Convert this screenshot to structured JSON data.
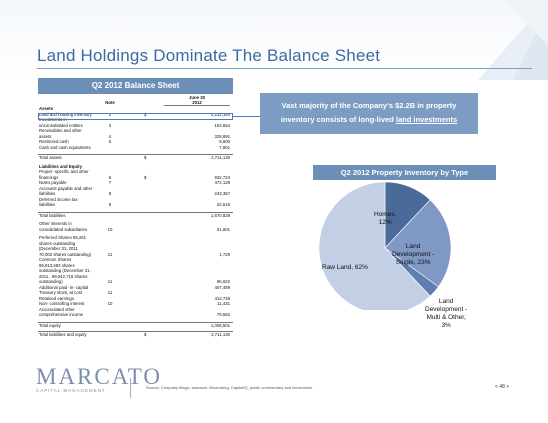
{
  "slide": {
    "title": "Land Holdings Dominate The Balance Sheet"
  },
  "balance_sheet": {
    "header": "Q2 2012 Balance Sheet",
    "col_note": "Note",
    "col_date": "June 30",
    "col_year": "2012",
    "rows": [
      {
        "label": "Assets",
        "note": "",
        "cur": "",
        "value": "",
        "bold": true
      },
      {
        "label": "Land and housing inventory",
        "note": "2",
        "cur": "$",
        "value": "2,212,184"
      },
      {
        "label": "Investments in",
        "note": "",
        "cur": "",
        "value": ""
      },
      {
        "label": "unconsolidated entities",
        "note": "3",
        "cur": "",
        "value": "153,654"
      },
      {
        "label": "Receivables and other",
        "note": "",
        "cur": "",
        "value": ""
      },
      {
        "label": "assets",
        "note": "4",
        "cur": "",
        "value": "328,891"
      },
      {
        "label": "Restricted cash",
        "note": "5",
        "cur": "",
        "value": "8,600"
      },
      {
        "label": "Cash and cash equivalents",
        "note": "",
        "cur": "",
        "value": "7,801"
      },
      {
        "label": "Total assets",
        "note": "",
        "cur": "$",
        "value": "2,711,130",
        "total": true
      },
      {
        "label": "Liabilities and Equity",
        "note": "",
        "cur": "",
        "value": "",
        "bold": true
      },
      {
        "label": "Project -specific and other",
        "note": "",
        "cur": "",
        "value": ""
      },
      {
        "label": "financings",
        "note": "6",
        "cur": "$",
        "value": "932,724"
      },
      {
        "label": "Notes payable",
        "note": "7",
        "cur": "",
        "value": "472,128"
      },
      {
        "label": "Accounts payable and other",
        "note": "",
        "cur": "",
        "value": ""
      },
      {
        "label": "liabilities",
        "note": "8",
        "cur": "",
        "value": "243,357"
      },
      {
        "label": "Deferred income tax",
        "note": "",
        "cur": "",
        "value": ""
      },
      {
        "label": "liabilities",
        "note": "9",
        "cur": "",
        "value": "22,619"
      },
      {
        "label": "Total liabilities",
        "note": "",
        "cur": "",
        "value": "1,670,828",
        "total": true
      },
      {
        "label": "Other interests in",
        "note": "",
        "cur": "",
        "value": ""
      },
      {
        "label": "consolidated subsidiaries",
        "note": "10",
        "cur": "",
        "value": "31,801"
      },
      {
        "label": "Preferred Shares  69,261",
        "note": "",
        "cur": "",
        "value": ""
      },
      {
        "label": "shares outstanding",
        "note": "",
        "cur": "",
        "value": ""
      },
      {
        "label": "(December 31, 2011",
        "note": "",
        "cur": "",
        "value": ""
      },
      {
        "label": "70,002 shares outstanding)",
        "note": "11",
        "cur": "",
        "value": "1,729"
      },
      {
        "label": "Common Shares",
        "note": "",
        "cur": "",
        "value": ""
      },
      {
        "label": "99,813,683 shares",
        "note": "",
        "cur": "",
        "value": ""
      },
      {
        "label": "outstanding (December 31,",
        "note": "",
        "cur": "",
        "value": ""
      },
      {
        "label": "2011 , 99,042,718 shares",
        "note": "",
        "cur": "",
        "value": ""
      },
      {
        "label": "outstanding)",
        "note": "11",
        "cur": "",
        "value": "96,622"
      },
      {
        "label": "Additional paid -in- capital",
        "note": "",
        "cur": "",
        "value": "407,469"
      },
      {
        "label": "Treasury stock, at cost",
        "note": "11",
        "cur": "",
        "value": ""
      },
      {
        "label": "Retained earnings",
        "note": "",
        "cur": "",
        "value": "412,748"
      },
      {
        "label": "Non- controlling interest",
        "note": "10",
        "cur": "",
        "value": "11,431"
      },
      {
        "label": "Accumulated other",
        "note": "",
        "cur": "",
        "value": ""
      },
      {
        "label": "comprehensive income",
        "note": "",
        "cur": "",
        "value": "79,562"
      },
      {
        "label": "Total equity",
        "note": "",
        "cur": "",
        "value": "1,008,501",
        "total": true
      },
      {
        "label": "Total liabilities and equity",
        "note": "",
        "cur": "$",
        "value": "2,711,130",
        "total": true
      }
    ]
  },
  "callout": {
    "line1": "Vast majority of the Company's $2.2B in property",
    "line2_prefix": "inventory consists of long-lived ",
    "line2_link": "land investments"
  },
  "chart_data": {
    "type": "pie",
    "title": "Q2 2012 Property Inventory by Type",
    "slices": [
      {
        "label": "Homes, 12%",
        "name": "Homes",
        "value": 12,
        "color": "#4a6b9a"
      },
      {
        "label": "Land Development - Single, 23%",
        "name": "Land Development - Single",
        "value": 23,
        "color": "#7f98c4"
      },
      {
        "label": "Land Development - Multi & Other, 3%",
        "name": "Land Development - Multi & Other",
        "value": 3,
        "color": "#5f7db0"
      },
      {
        "label": "Raw Land, 62%",
        "name": "Raw Land",
        "value": 62,
        "color": "#c2cfe5"
      }
    ]
  },
  "pie_labels": {
    "homes_l1": "Homes,",
    "homes_l2": "12%",
    "lds_l1": "Land",
    "lds_l2": "Development -",
    "lds_l3": "Single, 23%",
    "ldm_l1": "Land",
    "ldm_l2": "Development -",
    "ldm_l3": "Multi & Other,",
    "ldm_l4": "3%",
    "raw": "Raw Land, 62%"
  },
  "footer": {
    "logo_word": "MARCATO",
    "logo_sub": "CAPITAL MANAGEMENT",
    "source": "Source: Company filings, research, Bloomberg, CapitalIQ, public commentary and information.",
    "page": "< 48 >"
  }
}
